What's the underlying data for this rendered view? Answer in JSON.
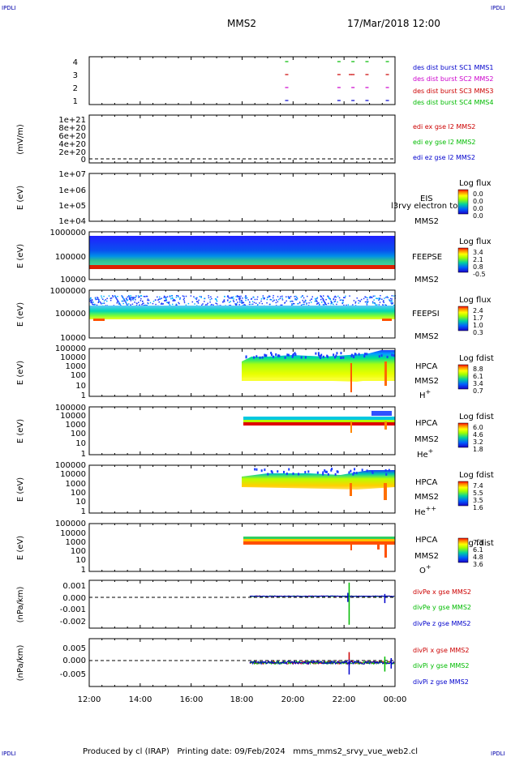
{
  "header": {
    "corner_tl": "IPDLI",
    "corner_tr": "IPDLI",
    "corner_bl": "IPDLI",
    "corner_br": "IPDLI",
    "spacecraft": "MMS2",
    "datetime": "17/Mar/2018 12:00"
  },
  "footer": {
    "text": "Produced by cl (IRAP)   Printing date: 09/Feb/2024   mms_mms2_srvy_vue_web2.cl"
  },
  "colors": {
    "mms1": "#0000cc",
    "mms2": "#cc00cc",
    "mms3": "#cc0000",
    "mms4": "#00bb00",
    "ex": "#cc0000",
    "ey": "#00bb00",
    "ez": "#0000cc"
  },
  "chart_data": [
    {
      "type": "scatter",
      "panel": "burst",
      "yticks": [
        "4",
        "3",
        "2",
        "1"
      ],
      "legend": [
        "des dist burst SC1 MMS1",
        "des dist burst SC2 MMS2",
        "des dist burst SC3 MMS3",
        "des dist burst SC4 MMS4"
      ],
      "series": [
        {
          "name": "des dist burst SC1 MMS1",
          "y": 1,
          "x": [
            19.75,
            21.8,
            22.35,
            22.9,
            23.7
          ]
        },
        {
          "name": "des dist burst SC2 MMS2",
          "y": 2,
          "x": [
            19.75,
            21.8,
            22.35,
            22.9,
            23.7
          ]
        },
        {
          "name": "des dist burst SC3 MMS3",
          "y": 3,
          "x": [
            19.75,
            21.8,
            22.25,
            22.35,
            22.9,
            23.7
          ]
        },
        {
          "name": "des dist burst SC4 MMS4",
          "y": 4,
          "x": [
            19.75,
            21.8,
            22.35,
            22.9,
            23.7
          ]
        }
      ]
    },
    {
      "type": "line",
      "panel": "edi",
      "ylabel": "(mV/m)",
      "yticks": [
        "1e+21",
        "8e+20",
        "6e+20",
        "4e+20",
        "2e+20",
        "0"
      ],
      "ylim": [
        0,
        1e+21
      ],
      "legend": [
        "edi ex gse l2 MMS2",
        "edi ey gse l2 MMS2",
        "edi ez gse l2 MMS2"
      ],
      "reference_line": 0
    },
    {
      "type": "heatmap",
      "panel": "eis",
      "ylabel": "E (eV)",
      "yticks": [
        "1e+07",
        "1e+06",
        "1e+05",
        "1e+04"
      ],
      "scale": "log",
      "instrument": "EIS",
      "spacecraft": "MMS2",
      "overlay_text": "l3rvy electron to",
      "colorbar_title": "Log flux",
      "colorbar_ticks": [
        "0.0",
        "0.0",
        "0.0",
        "0.0"
      ]
    },
    {
      "type": "heatmap",
      "panel": "feepse",
      "ylabel": "E (eV)",
      "yticks": [
        "1000000",
        "100000",
        "10000"
      ],
      "scale": "log",
      "instrument": "FEEPSE",
      "spacecraft": "MMS2",
      "colorbar_title": "Log flux",
      "colorbar_ticks": [
        "3.4",
        "2.1",
        "0.8",
        "-0.5"
      ],
      "coverage_hours": [
        12.0,
        24.0
      ]
    },
    {
      "type": "heatmap",
      "panel": "feepsi",
      "ylabel": "E (eV)",
      "yticks": [
        "1000000",
        "100000",
        "10000"
      ],
      "scale": "log",
      "instrument": "FEEPSI",
      "spacecraft": "MMS2",
      "colorbar_title": "Log flux",
      "colorbar_ticks": [
        "2.4",
        "1.7",
        "1.0",
        "0.3"
      ],
      "coverage_hours": [
        12.0,
        24.0
      ]
    },
    {
      "type": "heatmap",
      "panel": "hpca_h",
      "ylabel": "E (eV)",
      "yticks": [
        "100000",
        "10000",
        "1000",
        "100",
        "10",
        "1"
      ],
      "scale": "log",
      "instrument": "HPCA",
      "spacecraft": "MMS2",
      "species": "H",
      "charge": "+",
      "colorbar_title": "Log fdist",
      "colorbar_ticks": [
        "8.8",
        "6.1",
        "3.4",
        "0.7"
      ],
      "coverage_hours": [
        18.0,
        24.0
      ]
    },
    {
      "type": "heatmap",
      "panel": "hpca_he",
      "ylabel": "E (eV)",
      "yticks": [
        "100000",
        "10000",
        "1000",
        "100",
        "10",
        "1"
      ],
      "scale": "log",
      "instrument": "HPCA",
      "spacecraft": "MMS2",
      "species": "He",
      "charge": "+",
      "colorbar_title": "Log fdist",
      "colorbar_ticks": [
        "6.0",
        "4.6",
        "3.2",
        "1.8"
      ],
      "coverage_hours": [
        18.0,
        24.0
      ]
    },
    {
      "type": "heatmap",
      "panel": "hpca_hepp",
      "ylabel": "E (eV)",
      "yticks": [
        "100000",
        "10000",
        "1000",
        "100",
        "10",
        "1"
      ],
      "scale": "log",
      "instrument": "HPCA",
      "spacecraft": "MMS2",
      "species": "He",
      "charge": "++",
      "colorbar_title": "Log fdist",
      "colorbar_ticks": [
        "7.4",
        "5.5",
        "3.5",
        "1.6"
      ],
      "coverage_hours": [
        18.0,
        24.0
      ]
    },
    {
      "type": "heatmap",
      "panel": "hpca_o",
      "ylabel": "E (eV)",
      "yticks": [
        "100000",
        "10000",
        "1000",
        "100",
        "10",
        "1"
      ],
      "scale": "log",
      "instrument": "HPCA",
      "spacecraft": "MMS2",
      "species": "O",
      "charge": "+",
      "colorbar_title": "Log fdist",
      "colorbar_ticks": [
        "7.3",
        "6.1",
        "4.8",
        "3.6"
      ],
      "coverage_hours": [
        18.0,
        24.0
      ]
    },
    {
      "type": "line",
      "panel": "divpe",
      "ylabel": "(nPa/km)",
      "yticks": [
        "0.001",
        "0.000",
        "-0.001",
        "-0.002"
      ],
      "ylim": [
        -0.0028,
        0.0014
      ],
      "legend": [
        "divPe x gse MMS2",
        "divPe y gse MMS2",
        "divPe z gse MMS2"
      ],
      "reference_line": 0,
      "coverage_hours": [
        18.3,
        24.0
      ],
      "spikes": [
        {
          "x": 22.15,
          "series": "z",
          "min": -0.0005,
          "max": 0.0003
        },
        {
          "x": 22.2,
          "series": "y",
          "min": -0.0025,
          "max": 0.0012
        },
        {
          "x": 23.6,
          "series": "z",
          "min": -0.0006,
          "max": 0.0002
        }
      ]
    },
    {
      "type": "line",
      "panel": "divpi",
      "ylabel": "(nPa/km)",
      "yticks": [
        "0.005",
        "0.000",
        "-0.005"
      ],
      "ylim": [
        -0.008,
        0.008
      ],
      "legend": [
        "divPi x gse MMS2",
        "divPi y gse MMS2",
        "divPi z gse MMS2"
      ],
      "reference_line": 0,
      "coverage_hours": [
        18.3,
        24.0
      ],
      "spikes": [
        {
          "x": 22.2,
          "series": "x",
          "min": -0.001,
          "max": 0.0035
        },
        {
          "x": 22.2,
          "series": "z",
          "min": -0.004,
          "max": 0.001
        },
        {
          "x": 23.6,
          "series": "y",
          "min": -0.003,
          "max": 0.002
        },
        {
          "x": 23.85,
          "series": "z",
          "min": -0.002,
          "max": 0.0015
        }
      ]
    }
  ],
  "xaxis": {
    "range_hours": [
      12,
      24
    ],
    "tick_labels": [
      "12:00",
      "14:00",
      "16:00",
      "18:00",
      "20:00",
      "22:00",
      "00:00"
    ]
  }
}
